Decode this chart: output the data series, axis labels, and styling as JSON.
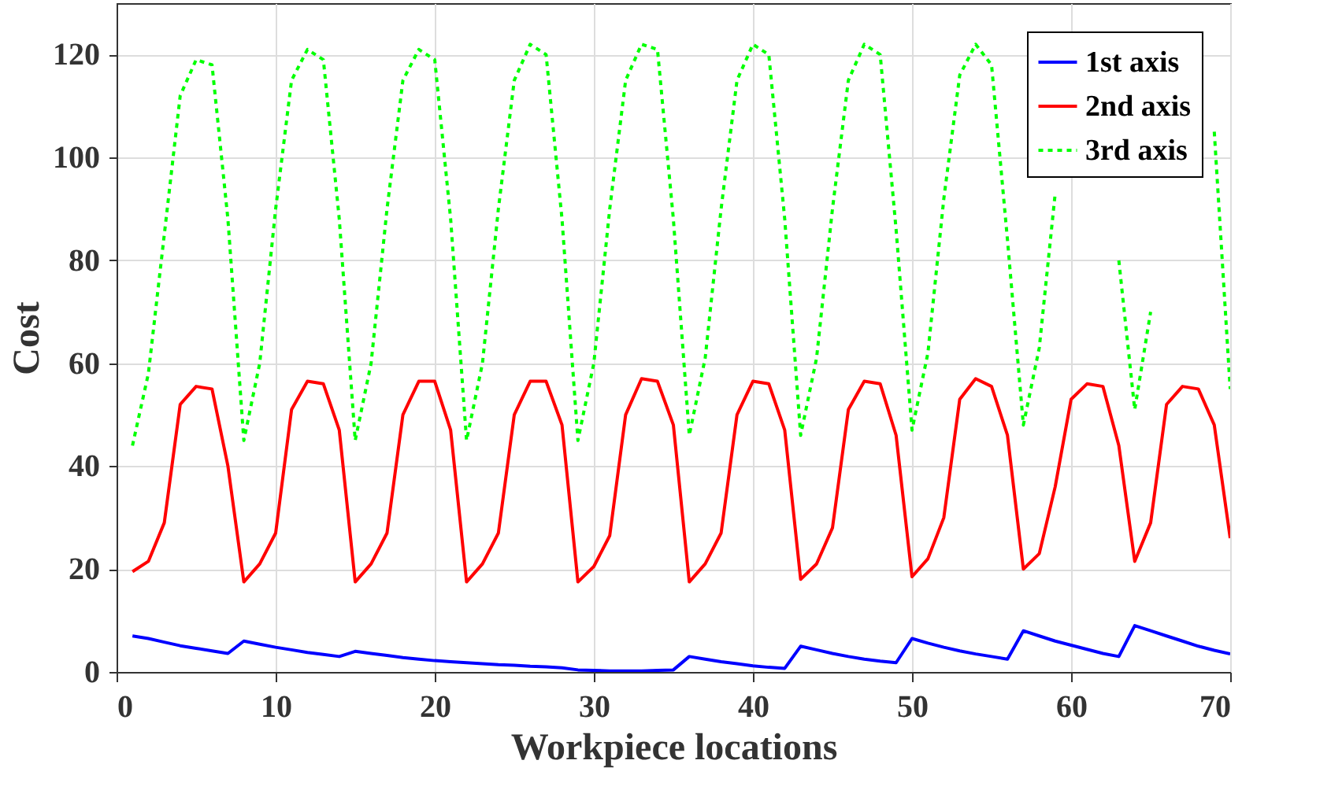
{
  "chart_data": {
    "type": "line",
    "xlabel": "Workpiece locations",
    "ylabel": "Cost",
    "x": [
      1,
      2,
      3,
      4,
      5,
      6,
      7,
      8,
      9,
      10,
      11,
      12,
      13,
      14,
      15,
      16,
      17,
      18,
      19,
      20,
      21,
      22,
      23,
      24,
      25,
      26,
      27,
      28,
      29,
      30,
      31,
      32,
      33,
      34,
      35,
      36,
      37,
      38,
      39,
      40,
      41,
      42,
      43,
      44,
      45,
      46,
      47,
      48,
      49,
      50,
      51,
      52,
      53,
      54,
      55,
      56,
      57,
      58,
      59,
      60,
      61,
      62,
      63,
      64,
      65,
      66,
      67,
      68,
      69,
      70
    ],
    "series": [
      {
        "name": "1st axis",
        "color": "#0000ff",
        "line_style": "solid",
        "values": [
          7,
          6.5,
          5.8,
          5.1,
          4.6,
          4.1,
          3.6,
          6,
          5.4,
          4.8,
          4.3,
          3.8,
          3.4,
          3,
          4,
          3.6,
          3.2,
          2.8,
          2.5,
          2.2,
          2,
          1.8,
          1.6,
          1.4,
          1.3,
          1.1,
          1,
          0.8,
          0.4,
          0.3,
          0.2,
          0.2,
          0.2,
          0.3,
          0.4,
          3,
          2.5,
          2,
          1.6,
          1.2,
          0.9,
          0.7,
          5,
          4.3,
          3.6,
          3,
          2.5,
          2.1,
          1.8,
          6.5,
          5.6,
          4.8,
          4.1,
          3.5,
          3,
          2.5,
          8,
          7,
          6,
          5.2,
          4.4,
          3.6,
          3,
          9,
          8,
          7,
          6,
          5,
          4.2,
          3.5
        ]
      },
      {
        "name": "2nd axis",
        "color": "#ff0000",
        "line_style": "solid",
        "values": [
          19.5,
          21.5,
          29,
          52,
          55.5,
          55,
          40,
          17.5,
          21,
          27,
          51,
          56.5,
          56,
          47,
          17.5,
          21,
          27,
          50,
          56.5,
          56.5,
          47,
          17.5,
          21,
          27,
          50,
          56.5,
          56.5,
          48,
          17.5,
          20.5,
          26.5,
          50,
          57,
          56.5,
          48,
          17.5,
          21,
          27,
          50,
          56.5,
          56,
          47,
          18,
          21,
          28,
          51,
          56.5,
          56,
          46,
          18.5,
          22,
          30,
          53,
          57,
          55.5,
          46,
          20,
          23,
          36,
          53,
          56,
          55.5,
          44,
          21.5,
          29,
          52,
          55.5,
          55,
          48,
          26
        ]
      },
      {
        "name": "3rd axis",
        "color": "#00ff00",
        "line_style": "dotted",
        "values": [
          44,
          58,
          85,
          112,
          119,
          118,
          88,
          45,
          60,
          90,
          115,
          121,
          119,
          88,
          45,
          60,
          90,
          115,
          121,
          119,
          88,
          45,
          60,
          90,
          115,
          122,
          120,
          88,
          45,
          60,
          90,
          115,
          122,
          121,
          88,
          46,
          61,
          90,
          115,
          122,
          120,
          88,
          46,
          61,
          90,
          115,
          122,
          120,
          86,
          47,
          62,
          92,
          116,
          122,
          118,
          84,
          48,
          63,
          93,
          null,
          null,
          null,
          80,
          51,
          70,
          null,
          null,
          null,
          105,
          55
        ]
      }
    ],
    "xlim": [
      0,
      70
    ],
    "xticks": [
      0,
      10,
      20,
      30,
      40,
      50,
      60,
      70
    ],
    "ylim": [
      0,
      130
    ],
    "yticks": [
      0,
      20,
      40,
      60,
      80,
      100,
      120
    ],
    "grid": true,
    "legend": "top right"
  }
}
